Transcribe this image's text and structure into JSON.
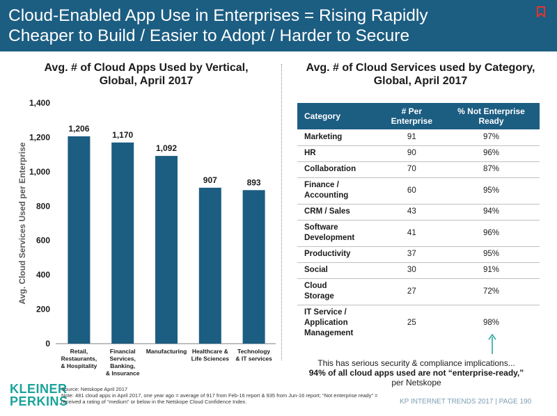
{
  "header": {
    "title_line1": "Cloud-Enabled App Use in Enterprises = Rising Rapidly",
    "title_line2": "Cheaper to Build / Easier to Adopt / Harder to Secure",
    "icon": "bookmark-icon"
  },
  "chart_data": {
    "type": "bar",
    "title_line1": "Avg. # of Cloud Apps Used by Vertical,",
    "title_line2": "Global, April 2017",
    "ylabel": "Avg. Cloud Services Used per Enterprise",
    "xlabel": "",
    "ylim": [
      0,
      1400
    ],
    "yticks": [
      "0",
      "200",
      "400",
      "600",
      "800",
      "1,000",
      "1,200",
      "1,400"
    ],
    "ytick_values": [
      0,
      200,
      400,
      600,
      800,
      1000,
      1200,
      1400
    ],
    "grid": false,
    "bar_color": "#1c5d82",
    "categories": [
      [
        "Retail,",
        "Restaurants,",
        "& Hospitality"
      ],
      [
        "Financial",
        "Services,",
        "Banking,",
        "& Insurance"
      ],
      [
        "Manufacturing"
      ],
      [
        "Healthcare &",
        "Life Sciences"
      ],
      [
        "Technology",
        "& IT services"
      ]
    ],
    "values": [
      1206,
      1170,
      1092,
      907,
      893
    ],
    "value_labels": [
      "1,206",
      "1,170",
      "1,092",
      "907",
      "893"
    ]
  },
  "table": {
    "title_line1": "Avg. # of Cloud Services used by Category,",
    "title_line2": "Global, April 2017",
    "headers": [
      [
        "Category"
      ],
      [
        "# Per",
        "Enterprise"
      ],
      [
        "% Not Enterprise",
        "Ready"
      ]
    ],
    "rows": [
      {
        "category": [
          "Marketing"
        ],
        "per_enterprise": "91",
        "not_ready": "97%"
      },
      {
        "category": [
          "HR"
        ],
        "per_enterprise": "90",
        "not_ready": "96%"
      },
      {
        "category": [
          "Collaboration"
        ],
        "per_enterprise": "70",
        "not_ready": "87%"
      },
      {
        "category": [
          "Finance /",
          "Accounting"
        ],
        "per_enterprise": "60",
        "not_ready": "95%"
      },
      {
        "category": [
          "CRM / Sales"
        ],
        "per_enterprise": "43",
        "not_ready": "94%"
      },
      {
        "category": [
          "Software",
          "Development"
        ],
        "per_enterprise": "41",
        "not_ready": "96%"
      },
      {
        "category": [
          "Productivity"
        ],
        "per_enterprise": "37",
        "not_ready": "95%"
      },
      {
        "category": [
          "Social"
        ],
        "per_enterprise": "30",
        "not_ready": "91%"
      },
      {
        "category": [
          "Cloud",
          "Storage"
        ],
        "per_enterprise": "27",
        "not_ready": "72%"
      },
      {
        "category": [
          "IT Service /",
          "Application",
          "Management"
        ],
        "per_enterprise": "25",
        "not_ready": "98%"
      }
    ]
  },
  "implication": {
    "line1": "This has serious security & compliance implications...",
    "line2": "94% of all cloud apps used are not “enterprise-ready,”",
    "line3": "per Netskope",
    "arrow_color": "#1aa39a"
  },
  "logo": {
    "line1": "KLEINER",
    "line2": "PERKINS"
  },
  "source": {
    "line1": "Source: Netskope April 2017",
    "line2": "Note: 481 cloud apps in April 2017, one year ago = average of 917 from Feb-16 report & 935 from Jun-16 report; “Not enterprise ready” =",
    "line3": "received a rating of “medium” or below in the Netskope Cloud Confidence Index."
  },
  "footer": {
    "text": "KP INTERNET TRENDS 2017   |   PAGE 190"
  }
}
